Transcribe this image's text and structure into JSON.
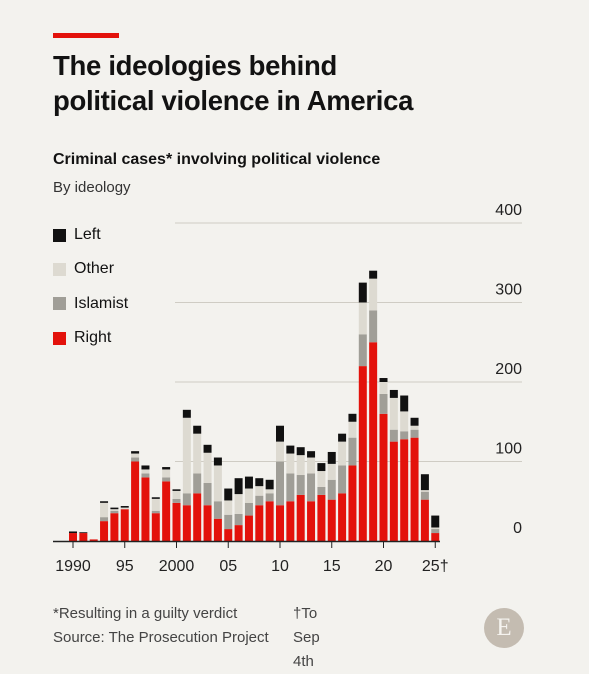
{
  "header": {
    "title_line1": "The ideologies behind",
    "title_line2": "political violence in America",
    "subtitle": "Criminal cases* involving political violence",
    "subtitle2": "By ideology"
  },
  "legend": [
    {
      "name": "Left",
      "color": "#111111"
    },
    {
      "name": "Other",
      "color": "#dddad1"
    },
    {
      "name": "Islamist",
      "color": "#a09e97"
    },
    {
      "name": "Right",
      "color": "#e3120b"
    }
  ],
  "chart_data": {
    "type": "bar",
    "stacked": true,
    "title": "Criminal cases* involving political violence",
    "subtitle": "By ideology",
    "ylim": [
      0,
      400
    ],
    "yticks": [
      "0",
      "100",
      "200",
      "300",
      "400"
    ],
    "xtick_labels": [
      {
        "year": 1990,
        "label": "1990"
      },
      {
        "year": 1995,
        "label": "95"
      },
      {
        "year": 2000,
        "label": "2000"
      },
      {
        "year": 2005,
        "label": "05"
      },
      {
        "year": 2010,
        "label": "10"
      },
      {
        "year": 2015,
        "label": "15"
      },
      {
        "year": 2020,
        "label": "20"
      },
      {
        "year": 2025,
        "label": "25†"
      }
    ],
    "grid": true,
    "legend_position": "top-left",
    "categories": [
      1990,
      1991,
      1992,
      1993,
      1994,
      1995,
      1996,
      1997,
      1998,
      1999,
      2000,
      2001,
      2002,
      2003,
      2004,
      2005,
      2006,
      2007,
      2008,
      2009,
      2010,
      2011,
      2012,
      2013,
      2014,
      2015,
      2016,
      2017,
      2018,
      2019,
      2020,
      2021,
      2022,
      2023,
      2024,
      2025
    ],
    "series": [
      {
        "name": "Right",
        "values": [
          10,
          10,
          2,
          25,
          35,
          40,
          100,
          80,
          35,
          75,
          48,
          45,
          60,
          45,
          28,
          15,
          20,
          32,
          45,
          50,
          45,
          50,
          58,
          50,
          58,
          52,
          60,
          95,
          220,
          250,
          160,
          125,
          128,
          130,
          52,
          10
        ]
      },
      {
        "name": "Islamist",
        "values": [
          0,
          0,
          0,
          5,
          3,
          0,
          5,
          5,
          3,
          5,
          5,
          15,
          25,
          28,
          22,
          18,
          14,
          16,
          12,
          10,
          55,
          35,
          25,
          35,
          10,
          25,
          35,
          35,
          40,
          40,
          25,
          15,
          10,
          10,
          10,
          5
        ]
      },
      {
        "name": "Other",
        "values": [
          0,
          0,
          0,
          18,
          2,
          2,
          5,
          5,
          15,
          10,
          10,
          95,
          50,
          38,
          45,
          18,
          25,
          18,
          12,
          5,
          25,
          25,
          25,
          20,
          20,
          20,
          30,
          20,
          40,
          40,
          15,
          40,
          25,
          5,
          2,
          2
        ]
      },
      {
        "name": "Left",
        "values": [
          2,
          1,
          0,
          2,
          2,
          2,
          3,
          5,
          2,
          3,
          2,
          10,
          10,
          10,
          10,
          15,
          20,
          15,
          10,
          12,
          20,
          10,
          10,
          8,
          10,
          15,
          10,
          10,
          25,
          10,
          5,
          10,
          20,
          10,
          20,
          15
        ]
      }
    ],
    "footnotes": [
      "*Resulting in a guilty verdict",
      "†To Sep 4th"
    ],
    "source": "Source: The Prosecution Project"
  },
  "footer": {
    "footnote1": "*Resulting in a guilty verdict",
    "footnote2": "†To Sep 4th",
    "source": "Source: The Prosecution Project",
    "logo_letter": "E"
  }
}
